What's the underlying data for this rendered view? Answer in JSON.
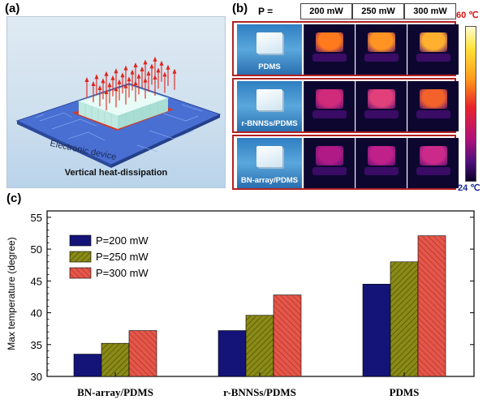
{
  "panel_a": {
    "label": "(a)",
    "device_text": "Electronic device",
    "caption": "Vertical heat-dissipation"
  },
  "panel_b": {
    "label": "(b)",
    "power_label": "P =",
    "columns": [
      "200 mW",
      "250 mW",
      "300 mW"
    ],
    "rows": [
      "PDMS",
      "r-BNNSs/PDMS",
      "BN-array/PDMS"
    ],
    "scale_max": "60 ℃",
    "scale_min": "24 ℃",
    "colors": {
      "frame": "#b22222",
      "scale_top": "#dd1111",
      "scale_bottom": "#1a2a9a"
    }
  },
  "chart_data": {
    "label": "(c)",
    "type": "bar",
    "categories": [
      "BN-array/PDMS",
      "r-BNNSs/PDMS",
      "PDMS"
    ],
    "series": [
      {
        "name": "P=200 mW",
        "values": [
          33.5,
          37.2,
          44.5
        ],
        "color": "#141478"
      },
      {
        "name": "P=250 mW",
        "values": [
          35.2,
          39.6,
          48.0
        ],
        "color": "#8a8a18"
      },
      {
        "name": "P=300 mW",
        "values": [
          37.2,
          42.8,
          52.1
        ],
        "color": "#e4574a"
      }
    ],
    "ylabel": "Max temperature (degree)",
    "ylim": [
      30,
      56
    ],
    "yticks": [
      30,
      35,
      40,
      45,
      50,
      55
    ],
    "legend_position": "top-left"
  }
}
